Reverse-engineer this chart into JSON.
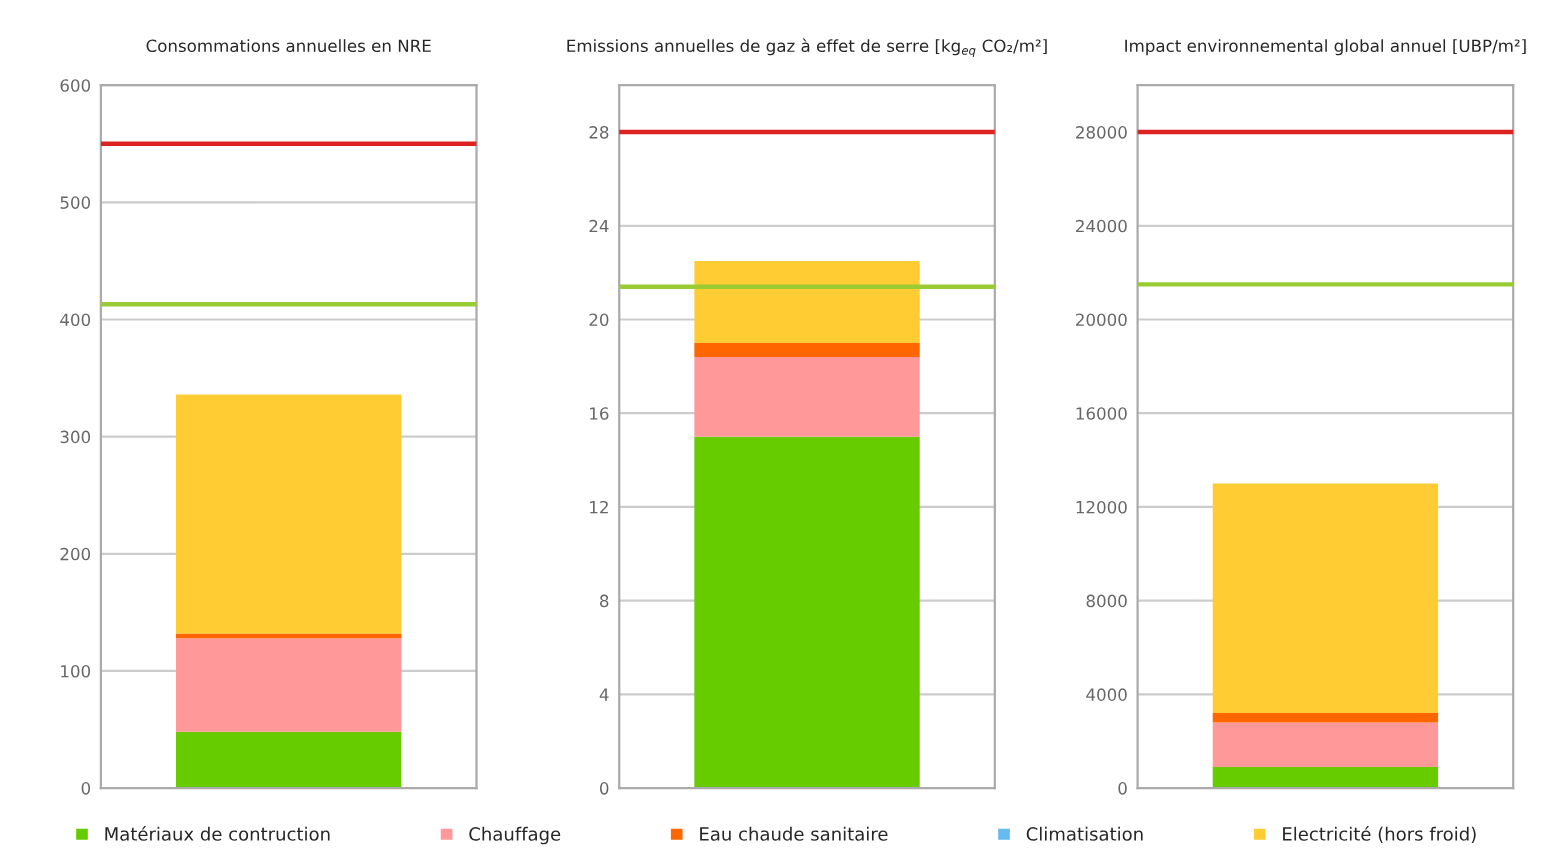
{
  "chart_data": [
    {
      "type": "bar",
      "stacked": true,
      "title": "Consommations annuelles en NRE",
      "categories": [
        null
      ],
      "ylim": [
        0,
        600
      ],
      "yticks": [
        0,
        100,
        200,
        300,
        400,
        500,
        600
      ],
      "grid": "y",
      "legend": "bottom",
      "series": [
        {
          "name": "Matériaux de contruction",
          "color": "#66cc00",
          "values": [
            48
          ]
        },
        {
          "name": "Chauffage",
          "color": "#ff9999",
          "values": [
            80
          ]
        },
        {
          "name": "Eau chaude sanitaire",
          "color": "#ff6600",
          "values": [
            4
          ]
        },
        {
          "name": "Climatisation",
          "color": "#66bbee",
          "values": [
            0
          ]
        },
        {
          "name": "Electricité (hors froid)",
          "color": "#ffcc33",
          "values": [
            204
          ]
        }
      ],
      "ref_lines": [
        {
          "axis": "y",
          "value": 550,
          "color": "#dd2222"
        },
        {
          "axis": "y",
          "value": 413,
          "color": "#99cc33"
        }
      ]
    },
    {
      "type": "bar",
      "stacked": true,
      "title": "Emissions annuelles de gaz à effet de serre [kg$_{eq}$ CO₂/m²]",
      "categories": [
        null
      ],
      "ylim": [
        0,
        30
      ],
      "yticks": [
        0,
        4,
        8,
        12,
        16,
        20,
        24,
        28
      ],
      "grid": "y",
      "series": [
        {
          "color": "#66cc00",
          "values": [
            15
          ]
        },
        {
          "color": "#ff9999",
          "values": [
            3.4
          ]
        },
        {
          "color": "#ff6600",
          "values": [
            0.6
          ]
        },
        {
          "color": "#66bbee",
          "values": [
            0
          ]
        },
        {
          "color": "#ffcc33",
          "values": [
            3.5
          ]
        }
      ],
      "ref_lines": [
        {
          "axis": "y",
          "value": 28,
          "color": "#dd2222"
        },
        {
          "axis": "y",
          "value": 21.4,
          "color": "#99cc33"
        }
      ]
    },
    {
      "type": "bar",
      "stacked": true,
      "title": "Impact environnemental global annuel [UBP/m²]",
      "categories": [
        null
      ],
      "ylim": [
        0,
        30000
      ],
      "yticks": [
        0,
        4000,
        8000,
        12000,
        16000,
        20000,
        24000,
        28000
      ],
      "grid": "y",
      "series": [
        {
          "color": "#66cc00",
          "values": [
            900
          ]
        },
        {
          "color": "#ff9999",
          "values": [
            1900
          ]
        },
        {
          "color": "#ff6600",
          "values": [
            400
          ]
        },
        {
          "color": "#66bbee",
          "values": [
            0
          ]
        },
        {
          "color": "#ffcc33",
          "values": [
            9800
          ]
        }
      ],
      "ref_lines": [
        {
          "axis": "y",
          "value": 28000,
          "color": "#dd2222"
        },
        {
          "axis": "y",
          "value": 21500,
          "color": "#99cc33"
        }
      ]
    }
  ]
}
